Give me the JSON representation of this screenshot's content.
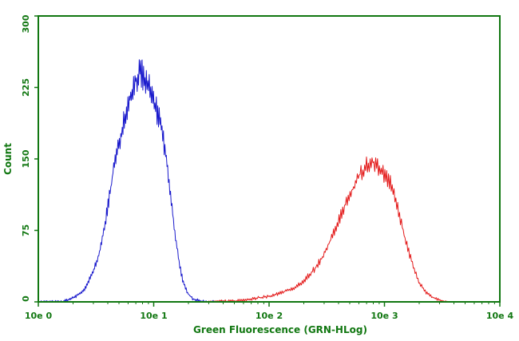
{
  "chart_data": {
    "type": "line",
    "title": "",
    "xlabel": "Green Fluorescence (GRN-HLog)",
    "ylabel": "Count",
    "x_scale": "log",
    "xlim": [
      1,
      10000
    ],
    "ylim": [
      0,
      300
    ],
    "x_ticks": [
      {
        "value": 1,
        "label": "10e 0"
      },
      {
        "value": 10,
        "label": "10e 1"
      },
      {
        "value": 100,
        "label": "10e 2"
      },
      {
        "value": 1000,
        "label": "10e 3"
      },
      {
        "value": 10000,
        "label": "10e 4"
      }
    ],
    "y_ticks": [
      {
        "value": 0,
        "label": "0"
      },
      {
        "value": 75,
        "label": "75"
      },
      {
        "value": 150,
        "label": "150"
      },
      {
        "value": 225,
        "label": "225"
      },
      {
        "value": 300,
        "label": "300"
      }
    ],
    "grid": false,
    "legend": "none",
    "colors": {
      "axis": "#117711",
      "text": "#117711",
      "series_1": "#1a1acc",
      "series_2": "#e31a1a"
    },
    "series": [
      {
        "color": "#1a1acc",
        "x": [
          1.0,
          1.6,
          2.0,
          2.5,
          3.0,
          3.5,
          4.0,
          4.5,
          5.0,
          5.5,
          6.0,
          6.5,
          7.0,
          7.5,
          8.0,
          8.5,
          9.0,
          10.0,
          11.0,
          12.0,
          13.0,
          14.0,
          15.0,
          16.0,
          17.0,
          18.0,
          20.0,
          22.0,
          25.0,
          30.0,
          35.0,
          40.0
        ],
        "y": [
          0,
          0,
          4,
          12,
          32,
          58,
          100,
          140,
          165,
          192,
          208,
          222,
          232,
          240,
          238,
          230,
          228,
          210,
          195,
          175,
          145,
          110,
          80,
          55,
          35,
          20,
          8,
          3,
          1,
          0,
          0,
          0
        ]
      },
      {
        "color": "#e31a1a",
        "x": [
          30,
          50,
          70,
          100,
          130,
          160,
          200,
          250,
          300,
          350,
          400,
          450,
          500,
          550,
          600,
          650,
          700,
          750,
          800,
          900,
          1000,
          1100,
          1200,
          1300,
          1400,
          1600,
          1800,
          2000,
          2300,
          2600,
          3000,
          3500
        ],
        "y": [
          0,
          1,
          3,
          6,
          10,
          14,
          22,
          35,
          50,
          68,
          84,
          100,
          112,
          122,
          132,
          138,
          143,
          148,
          146,
          140,
          133,
          126,
          118,
          100,
          82,
          55,
          35,
          20,
          10,
          5,
          2,
          0
        ]
      }
    ]
  }
}
